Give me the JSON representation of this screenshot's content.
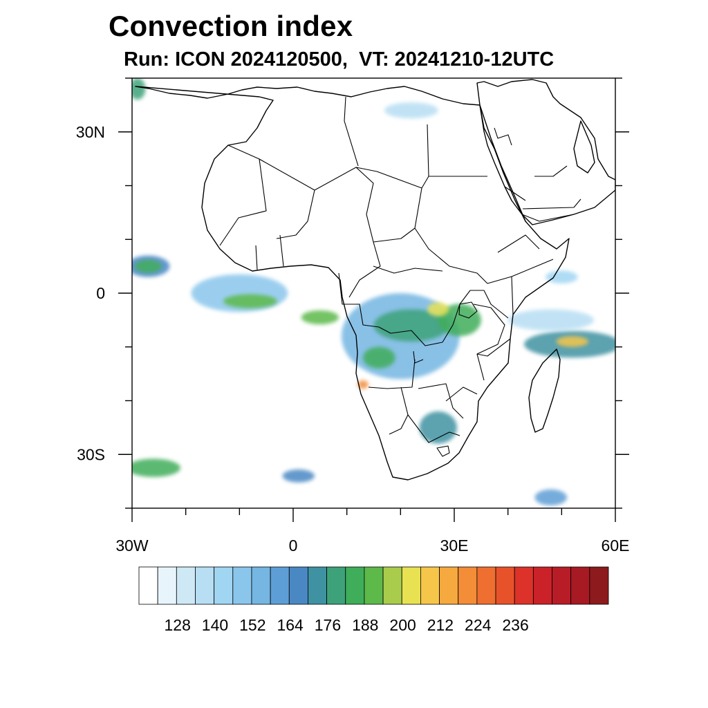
{
  "title": "Convection index",
  "subtitle": "Run: ICON 2024120500,  VT: 20241210-12UTC",
  "map": {
    "lon_range": [
      -30,
      60
    ],
    "lat_range": [
      -40,
      40
    ],
    "x_ticks": [
      {
        "lon": -30,
        "label": "30W"
      },
      {
        "lon": 0,
        "label": "0"
      },
      {
        "lon": 30,
        "label": "30E"
      },
      {
        "lon": 60,
        "label": "60E"
      }
    ],
    "y_ticks": [
      {
        "lat": 30,
        "label": "30N"
      },
      {
        "lat": 0,
        "label": "0"
      },
      {
        "lat": -30,
        "label": "30S"
      }
    ],
    "minor_tick_step_deg": 10
  },
  "colorbar": {
    "colors": [
      "#ffffff",
      "#e8f4fb",
      "#cfe8f6",
      "#b7def3",
      "#a0d6f2",
      "#8ac6ec",
      "#75b6e2",
      "#5e9ed6",
      "#4a88c4",
      "#3f92a2",
      "#3da279",
      "#3fad5a",
      "#5cb94a",
      "#a9cc4c",
      "#e8e253",
      "#f6c64a",
      "#f5a93f",
      "#f38d37",
      "#ef6f30",
      "#e8522b",
      "#dc3229",
      "#cb2229",
      "#b81d27",
      "#a71a23",
      "#8d1a1c"
    ],
    "labels": [
      "128",
      "140",
      "152",
      "164",
      "176",
      "188",
      "200",
      "212",
      "224",
      "236"
    ]
  },
  "convection_patches": [
    {
      "lon": -27,
      "lat": 5,
      "rx": 4,
      "ry": 2,
      "level": 8
    },
    {
      "lon": -27,
      "lat": 5,
      "rx": 2.5,
      "ry": 1.2,
      "level": 11
    },
    {
      "lon": -10,
      "lat": 0,
      "rx": 9,
      "ry": 3.5,
      "level": 5
    },
    {
      "lon": -8,
      "lat": -1.5,
      "rx": 5,
      "ry": 1.3,
      "level": 12
    },
    {
      "lon": 5,
      "lat": -4.5,
      "rx": 3.5,
      "ry": 1.3,
      "level": 12
    },
    {
      "lon": 20,
      "lat": -8,
      "rx": 11,
      "ry": 8,
      "level": 6
    },
    {
      "lon": 22,
      "lat": -6,
      "rx": 7,
      "ry": 3,
      "level": 10
    },
    {
      "lon": 31,
      "lat": -5,
      "rx": 4,
      "ry": 3,
      "level": 11
    },
    {
      "lon": 27,
      "lat": -3,
      "rx": 2,
      "ry": 1.3,
      "level": 14
    },
    {
      "lon": 16,
      "lat": -12,
      "rx": 3,
      "ry": 2,
      "level": 11
    },
    {
      "lon": 13,
      "lat": -17,
      "rx": 1,
      "ry": 0.8,
      "level": 17
    },
    {
      "lon": 27,
      "lat": -25,
      "rx": 3.5,
      "ry": 3,
      "level": 9
    },
    {
      "lon": 52,
      "lat": -9.5,
      "rx": 9,
      "ry": 2.5,
      "level": 9
    },
    {
      "lon": 52,
      "lat": -9,
      "rx": 3,
      "ry": 1,
      "level": 15
    },
    {
      "lon": 48,
      "lat": -5,
      "rx": 8,
      "ry": 2,
      "level": 3
    },
    {
      "lon": -26,
      "lat": -32.5,
      "rx": 5,
      "ry": 1.7,
      "level": 11
    },
    {
      "lon": 1,
      "lat": -34,
      "rx": 3,
      "ry": 1.2,
      "level": 8
    },
    {
      "lon": 48,
      "lat": -38,
      "rx": 3,
      "ry": 1.5,
      "level": 7
    },
    {
      "lon": 22,
      "lat": 34,
      "rx": 5,
      "ry": 1.5,
      "level": 3
    },
    {
      "lon": -29,
      "lat": 38,
      "rx": 1.5,
      "ry": 2,
      "level": 10
    },
    {
      "lon": 50,
      "lat": 3,
      "rx": 3,
      "ry": 1.2,
      "level": 4
    }
  ]
}
